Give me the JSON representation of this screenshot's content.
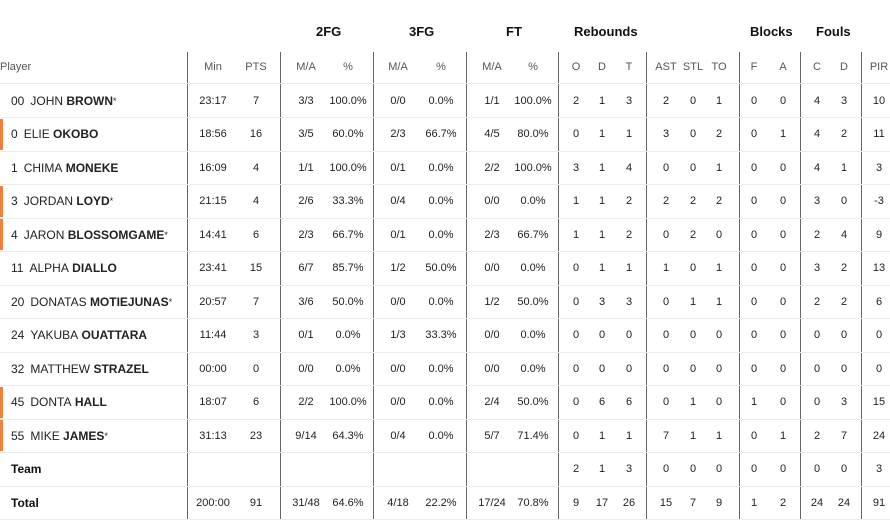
{
  "groups": {
    "fg2": "2FG",
    "fg3": "3FG",
    "ft": "FT",
    "rebounds": "Rebounds",
    "blocks": "Blocks",
    "fouls": "Fouls"
  },
  "headers": {
    "player": "Player",
    "min": "Min",
    "pts": "PTS",
    "fg2_ma": "M/A",
    "fg2_pct": "%",
    "fg3_ma": "M/A",
    "fg3_pct": "%",
    "ft_ma": "M/A",
    "ft_pct": "%",
    "o": "O",
    "d": "D",
    "t": "T",
    "ast": "AST",
    "stl": "STL",
    "to": "TO",
    "bf": "F",
    "ba": "A",
    "fc": "C",
    "fd": "D",
    "pir": "PIR"
  },
  "accent_color": "#f47f3a",
  "players": [
    {
      "number": "00",
      "first": "JOHN",
      "last": "BROWN",
      "starter": "*",
      "bar": false,
      "min": "23:17",
      "pts": "7",
      "fg2": "3/3",
      "fg2p": "100.0%",
      "fg3": "0/0",
      "fg3p": "0.0%",
      "ft": "1/1",
      "ftp": "100.0%",
      "o": "2",
      "d": "1",
      "t": "3",
      "ast": "2",
      "stl": "0",
      "to": "1",
      "bf": "0",
      "ba": "0",
      "fc": "4",
      "fd": "3",
      "pir": "10"
    },
    {
      "number": "0",
      "first": "ELIE",
      "last": "OKOBO",
      "starter": "",
      "bar": true,
      "min": "18:56",
      "pts": "16",
      "fg2": "3/5",
      "fg2p": "60.0%",
      "fg3": "2/3",
      "fg3p": "66.7%",
      "ft": "4/5",
      "ftp": "80.0%",
      "o": "0",
      "d": "1",
      "t": "1",
      "ast": "3",
      "stl": "0",
      "to": "2",
      "bf": "0",
      "ba": "1",
      "fc": "4",
      "fd": "2",
      "pir": "11"
    },
    {
      "number": "1",
      "first": "CHIMA",
      "last": "MONEKE",
      "starter": "",
      "bar": false,
      "min": "16:09",
      "pts": "4",
      "fg2": "1/1",
      "fg2p": "100.0%",
      "fg3": "0/1",
      "fg3p": "0.0%",
      "ft": "2/2",
      "ftp": "100.0%",
      "o": "3",
      "d": "1",
      "t": "4",
      "ast": "0",
      "stl": "0",
      "to": "1",
      "bf": "0",
      "ba": "0",
      "fc": "4",
      "fd": "1",
      "pir": "3"
    },
    {
      "number": "3",
      "first": "JORDAN",
      "last": "LOYD",
      "starter": "*",
      "bar": true,
      "min": "21:15",
      "pts": "4",
      "fg2": "2/6",
      "fg2p": "33.3%",
      "fg3": "0/4",
      "fg3p": "0.0%",
      "ft": "0/0",
      "ftp": "0.0%",
      "o": "1",
      "d": "1",
      "t": "2",
      "ast": "2",
      "stl": "2",
      "to": "2",
      "bf": "0",
      "ba": "0",
      "fc": "3",
      "fd": "0",
      "pir": "-3"
    },
    {
      "number": "4",
      "first": "JARON",
      "last": "BLOSSOMGAME",
      "starter": "*",
      "bar": true,
      "min": "14:41",
      "pts": "6",
      "fg2": "2/3",
      "fg2p": "66.7%",
      "fg3": "0/1",
      "fg3p": "0.0%",
      "ft": "2/3",
      "ftp": "66.7%",
      "o": "1",
      "d": "1",
      "t": "2",
      "ast": "0",
      "stl": "2",
      "to": "0",
      "bf": "0",
      "ba": "0",
      "fc": "2",
      "fd": "4",
      "pir": "9"
    },
    {
      "number": "11",
      "first": "ALPHA",
      "last": "DIALLO",
      "starter": "",
      "bar": false,
      "min": "23:41",
      "pts": "15",
      "fg2": "6/7",
      "fg2p": "85.7%",
      "fg3": "1/2",
      "fg3p": "50.0%",
      "ft": "0/0",
      "ftp": "0.0%",
      "o": "0",
      "d": "1",
      "t": "1",
      "ast": "1",
      "stl": "0",
      "to": "1",
      "bf": "0",
      "ba": "0",
      "fc": "3",
      "fd": "2",
      "pir": "13"
    },
    {
      "number": "20",
      "first": "DONATAS",
      "last": "MOTIEJUNAS",
      "starter": "*",
      "bar": false,
      "min": "20:57",
      "pts": "7",
      "fg2": "3/6",
      "fg2p": "50.0%",
      "fg3": "0/0",
      "fg3p": "0.0%",
      "ft": "1/2",
      "ftp": "50.0%",
      "o": "0",
      "d": "3",
      "t": "3",
      "ast": "0",
      "stl": "1",
      "to": "1",
      "bf": "0",
      "ba": "0",
      "fc": "2",
      "fd": "2",
      "pir": "6"
    },
    {
      "number": "24",
      "first": "YAKUBA",
      "last": "OUATTARA",
      "starter": "",
      "bar": false,
      "min": "11:44",
      "pts": "3",
      "fg2": "0/1",
      "fg2p": "0.0%",
      "fg3": "1/3",
      "fg3p": "33.3%",
      "ft": "0/0",
      "ftp": "0.0%",
      "o": "0",
      "d": "0",
      "t": "0",
      "ast": "0",
      "stl": "0",
      "to": "0",
      "bf": "0",
      "ba": "0",
      "fc": "0",
      "fd": "0",
      "pir": "0"
    },
    {
      "number": "32",
      "first": "MATTHEW",
      "last": "STRAZEL",
      "starter": "",
      "bar": false,
      "min": "00:00",
      "pts": "0",
      "fg2": "0/0",
      "fg2p": "0.0%",
      "fg3": "0/0",
      "fg3p": "0.0%",
      "ft": "0/0",
      "ftp": "0.0%",
      "o": "0",
      "d": "0",
      "t": "0",
      "ast": "0",
      "stl": "0",
      "to": "0",
      "bf": "0",
      "ba": "0",
      "fc": "0",
      "fd": "0",
      "pir": "0"
    },
    {
      "number": "45",
      "first": "DONTA",
      "last": "HALL",
      "starter": "",
      "bar": true,
      "min": "18:07",
      "pts": "6",
      "fg2": "2/2",
      "fg2p": "100.0%",
      "fg3": "0/0",
      "fg3p": "0.0%",
      "ft": "2/4",
      "ftp": "50.0%",
      "o": "0",
      "d": "6",
      "t": "6",
      "ast": "0",
      "stl": "1",
      "to": "0",
      "bf": "1",
      "ba": "0",
      "fc": "0",
      "fd": "3",
      "pir": "15"
    },
    {
      "number": "55",
      "first": "MIKE",
      "last": "JAMES",
      "starter": "*",
      "bar": true,
      "min": "31:13",
      "pts": "23",
      "fg2": "9/14",
      "fg2p": "64.3%",
      "fg3": "0/4",
      "fg3p": "0.0%",
      "ft": "5/7",
      "ftp": "71.4%",
      "o": "0",
      "d": "1",
      "t": "1",
      "ast": "7",
      "stl": "1",
      "to": "1",
      "bf": "0",
      "ba": "1",
      "fc": "2",
      "fd": "7",
      "pir": "24"
    }
  ],
  "team": {
    "label": "Team",
    "min": "",
    "pts": "",
    "fg2": "",
    "fg2p": "",
    "fg3": "",
    "fg3p": "",
    "ft": "",
    "ftp": "",
    "o": "2",
    "d": "1",
    "t": "3",
    "ast": "0",
    "stl": "0",
    "to": "0",
    "bf": "0",
    "ba": "0",
    "fc": "0",
    "fd": "0",
    "pir": "3"
  },
  "total": {
    "label": "Total",
    "min": "200:00",
    "pts": "91",
    "fg2": "31/48",
    "fg2p": "64.6%",
    "fg3": "4/18",
    "fg3p": "22.2%",
    "ft": "17/24",
    "ftp": "70.8%",
    "o": "9",
    "d": "17",
    "t": "26",
    "ast": "15",
    "stl": "7",
    "to": "9",
    "bf": "1",
    "ba": "2",
    "fc": "24",
    "fd": "24",
    "pir": "91"
  }
}
